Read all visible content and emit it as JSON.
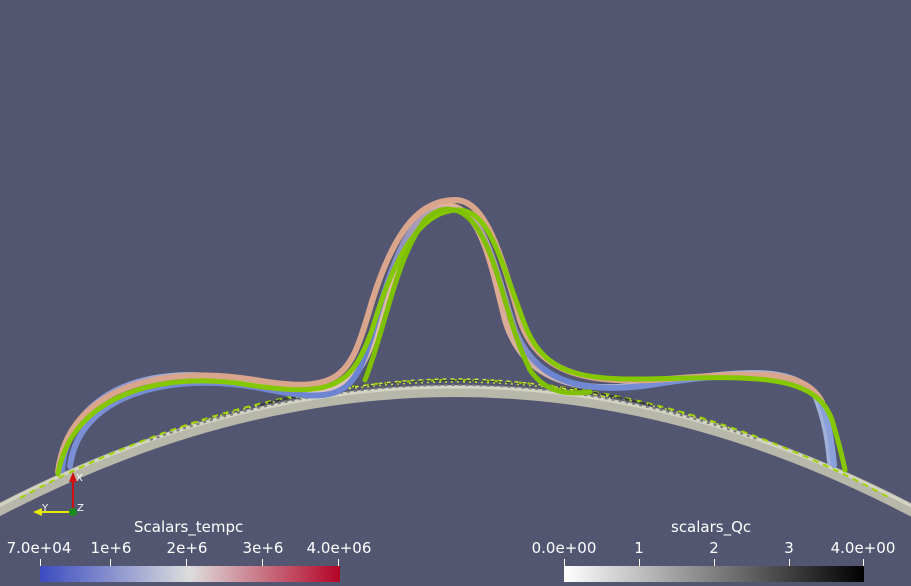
{
  "colorbars": {
    "tempc": {
      "title": "Scalars_tempc",
      "labels": [
        "7.0e+04",
        "1e+6",
        "2e+6",
        "3e+6",
        "4.0e+06"
      ],
      "colors": [
        "#3b4cc0",
        "#dddddd",
        "#b40426"
      ]
    },
    "qc": {
      "title": "scalars_Qc",
      "labels": [
        "0.0e+00",
        "1",
        "2",
        "3",
        "4.0e+00"
      ],
      "colors": [
        "#ffffff",
        "#000000"
      ]
    }
  },
  "axes": {
    "x_label": "X",
    "y_label": "Y",
    "z_label": "Z"
  },
  "colors": {
    "background": "#525670",
    "streamline_green": "#7fc400",
    "surface": "#c8c8b8"
  }
}
